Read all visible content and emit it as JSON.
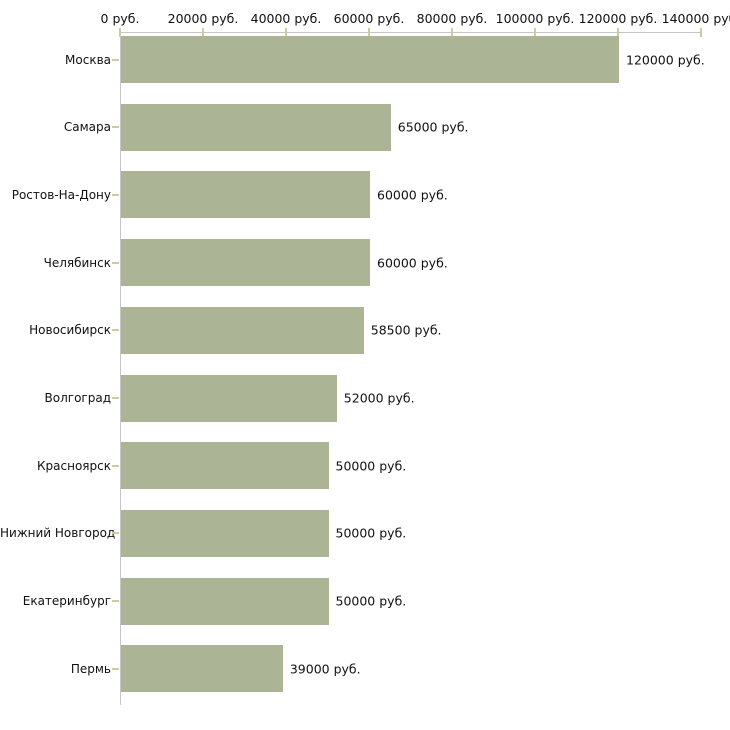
{
  "chart_data": {
    "type": "bar",
    "orientation": "horizontal",
    "title": "",
    "xlabel": "",
    "ylabel": "",
    "unit": "руб.",
    "categories": [
      "Москва",
      "Самара",
      "Ростов-На-Дону",
      "Челябинск",
      "Новосибирск",
      "Волгоград",
      "Красноярск",
      "Нижний Новгород",
      "Екатеринбург",
      "Пермь"
    ],
    "values": [
      120000,
      65000,
      60000,
      60000,
      58500,
      52000,
      50000,
      50000,
      50000,
      39000
    ],
    "value_labels": [
      "120000 руб.",
      "65000 руб.",
      "60000 руб.",
      "60000 руб.",
      "58500 руб.",
      "52000 руб.",
      "50000 руб.",
      "50000 руб.",
      "50000 руб.",
      "39000 руб."
    ],
    "xlim": [
      0,
      140000
    ],
    "x_ticks": [
      0,
      20000,
      40000,
      60000,
      80000,
      100000,
      120000,
      140000
    ],
    "x_tick_labels": [
      "0 руб.",
      "20000 руб.",
      "40000 руб.",
      "60000 руб.",
      "80000 руб.",
      "100000 руб.",
      "120000 руб.",
      "140000 руб."
    ],
    "grid": false,
    "legend": false,
    "colors": {
      "background": "#ffffff",
      "bar": "#acb496",
      "axis_line": "#c6c6c6",
      "tick_mark": "#cccc9f",
      "text": "#111111"
    }
  }
}
